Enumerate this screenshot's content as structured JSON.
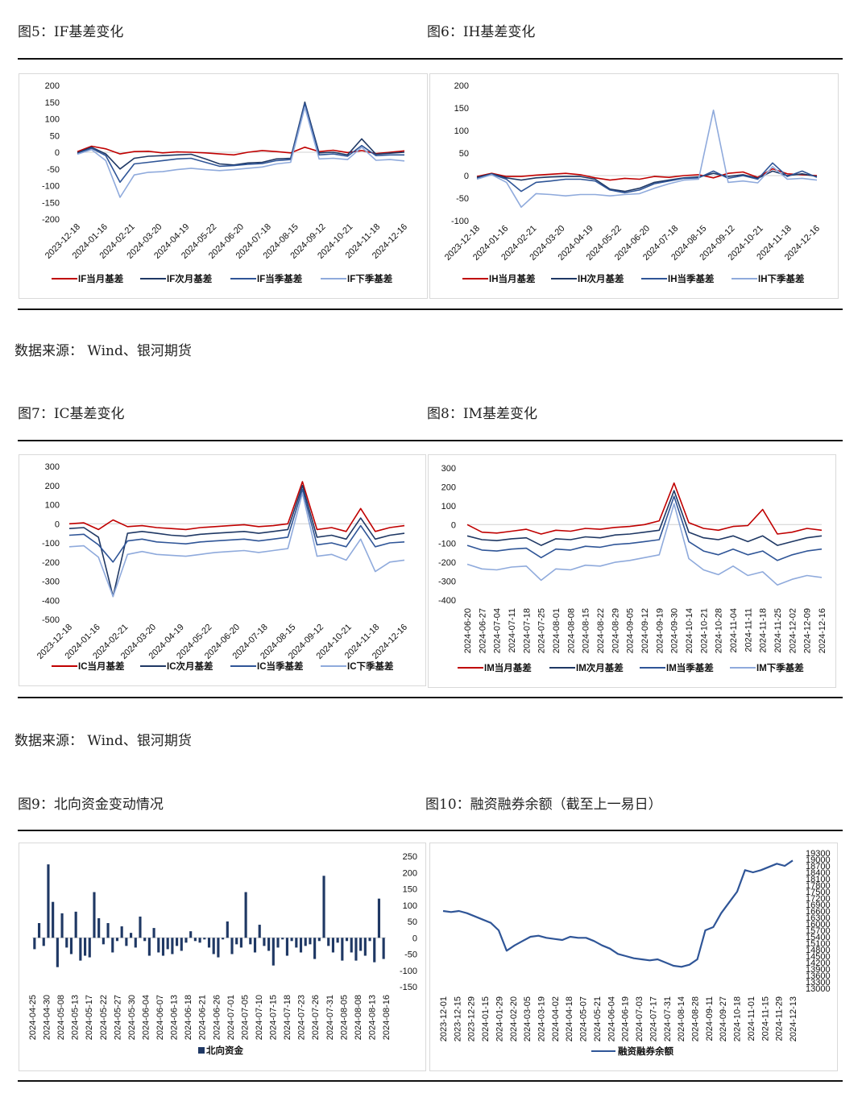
{
  "titles": {
    "fig5": "图5：IF基差变化",
    "fig6": "图6：IH基差变化",
    "fig7": "图7：IC基差变化",
    "fig8": "图8：IM基差变化",
    "fig9": "图9：北向资金变动情况",
    "fig10": "图10：融资融券余额（截至上一易日）"
  },
  "source_note": "数据来源：  Wind、银河期货",
  "colors": {
    "red": "#c00000",
    "navy": "#1f3864",
    "mid": "#2f5597",
    "light": "#8faadc",
    "bar": "#1f3864",
    "rule": "#111111"
  },
  "chart_data": [
    {
      "id": "fig5",
      "type": "line",
      "title": "IF基差变化",
      "yticks": [
        "200",
        "150",
        "100",
        "50",
        "0",
        "-50",
        "-100",
        "-150",
        "-200"
      ],
      "xticks": [
        "2023-12-18",
        "2024-01-16",
        "2024-02-21",
        "2024-03-20",
        "2024-04-19",
        "2024-05-22",
        "2024-06-20",
        "2024-07-18",
        "2024-08-15",
        "2024-09-12",
        "2024-10-21",
        "2024-11-18",
        "2024-12-16"
      ],
      "ylim": [
        -200,
        200
      ],
      "legend": [
        "IF当月基差",
        "IF次月基差",
        "IF当季基差",
        "IF下季基差"
      ],
      "series": [
        {
          "name": "IF当月基差",
          "values": [
            2,
            18,
            10,
            -5,
            2,
            3,
            -2,
            1,
            0,
            -2,
            -5,
            -8,
            0,
            5,
            2,
            -2,
            15,
            2,
            6,
            -1,
            5,
            -4,
            0,
            4
          ]
        },
        {
          "name": "IF次月基差",
          "values": [
            -2,
            15,
            -5,
            -50,
            -18,
            -12,
            -10,
            -8,
            -6,
            -20,
            -35,
            -38,
            -32,
            -30,
            -20,
            -18,
            150,
            -2,
            0,
            -8,
            40,
            -6,
            -3,
            0
          ]
        },
        {
          "name": "IF当季基差",
          "values": [
            -4,
            12,
            -10,
            -90,
            -35,
            -30,
            -25,
            -20,
            -18,
            -30,
            -42,
            -40,
            -36,
            -34,
            -25,
            -22,
            145,
            -8,
            -5,
            -12,
            20,
            -10,
            -8,
            -8
          ]
        },
        {
          "name": "IF下季基差",
          "values": [
            -6,
            8,
            -25,
            -135,
            -68,
            -60,
            -58,
            -52,
            -48,
            -52,
            -55,
            -52,
            -48,
            -44,
            -35,
            -30,
            135,
            -20,
            -18,
            -22,
            15,
            -24,
            -22,
            -26
          ]
        }
      ]
    },
    {
      "id": "fig6",
      "type": "line",
      "title": "IH基差变化",
      "yticks": [
        "200",
        "150",
        "100",
        "50",
        "0",
        "-50",
        "-100"
      ],
      "xticks": [
        "2023-12-18",
        "2024-01-16",
        "2024-02-21",
        "2024-03-20",
        "2024-04-19",
        "2024-05-22",
        "2024-06-20",
        "2024-07-18",
        "2024-08-15",
        "2024-09-12",
        "2024-10-21",
        "2024-11-18",
        "2024-12-16"
      ],
      "ylim": [
        -100,
        200
      ],
      "legend": [
        "IH当月基差",
        "IH次月基差",
        "IH当季基差",
        "IH下季基差"
      ],
      "series": [
        {
          "name": "IH当月基差",
          "values": [
            -2,
            5,
            -2,
            -2,
            1,
            3,
            5,
            2,
            -5,
            -10,
            -6,
            -8,
            -2,
            -4,
            0,
            2,
            -5,
            5,
            8,
            -4,
            15,
            4,
            2,
            0
          ]
        },
        {
          "name": "IH次月基差",
          "values": [
            -4,
            4,
            -5,
            -10,
            -5,
            -3,
            -2,
            -2,
            -8,
            -30,
            -35,
            -28,
            -15,
            -10,
            -5,
            -3,
            5,
            -2,
            2,
            -6,
            10,
            0,
            4,
            -2
          ]
        },
        {
          "name": "IH当季基差",
          "values": [
            -6,
            3,
            -8,
            -35,
            -15,
            -12,
            -8,
            -8,
            -12,
            -32,
            -38,
            -32,
            -18,
            -12,
            -6,
            -5,
            10,
            -6,
            0,
            -8,
            28,
            -2,
            10,
            -4
          ]
        },
        {
          "name": "IH下季基差",
          "values": [
            -8,
            2,
            -15,
            -70,
            -40,
            -42,
            -45,
            -42,
            -42,
            -45,
            -42,
            -40,
            -28,
            -18,
            -10,
            -8,
            145,
            -15,
            -12,
            -16,
            20,
            -8,
            -6,
            -10
          ]
        }
      ]
    },
    {
      "id": "fig7",
      "type": "line",
      "title": "IC基差变化",
      "yticks": [
        "300",
        "200",
        "100",
        "0",
        "-100",
        "-200",
        "-300",
        "-400",
        "-500"
      ],
      "xticks": [
        "2023-12-18",
        "2024-01-16",
        "2024-02-21",
        "2024-03-20",
        "2024-04-19",
        "2024-05-22",
        "2024-06-20",
        "2024-07-18",
        "2024-08-15",
        "2024-09-12",
        "2024-10-21",
        "2024-11-18",
        "2024-12-16"
      ],
      "ylim": [
        -500,
        300
      ],
      "legend": [
        "IC当月基差",
        "IC次月基差",
        "IC当季基差",
        "IC下季基差"
      ],
      "series": [
        {
          "name": "IC当月基差",
          "values": [
            0,
            5,
            -30,
            20,
            -15,
            -10,
            -20,
            -25,
            -30,
            -20,
            -15,
            -10,
            -5,
            -15,
            -10,
            0,
            220,
            -30,
            -20,
            -40,
            80,
            -40,
            -20,
            -10
          ]
        },
        {
          "name": "IC次月基差",
          "values": [
            -25,
            -20,
            -70,
            -380,
            -50,
            -40,
            -50,
            -60,
            -65,
            -55,
            -50,
            -45,
            -40,
            -50,
            -40,
            -30,
            200,
            -70,
            -60,
            -80,
            30,
            -80,
            -60,
            -50
          ]
        },
        {
          "name": "IC当季基差",
          "values": [
            -60,
            -55,
            -110,
            -200,
            -90,
            -80,
            -95,
            -100,
            -105,
            -95,
            -90,
            -85,
            -80,
            -90,
            -80,
            -70,
            180,
            -110,
            -100,
            -120,
            -10,
            -120,
            -100,
            -95
          ]
        },
        {
          "name": "IC下季基差",
          "values": [
            -120,
            -115,
            -175,
            -380,
            -160,
            -145,
            -160,
            -165,
            -170,
            -160,
            -150,
            -145,
            -140,
            -150,
            -140,
            -130,
            160,
            -170,
            -160,
            -190,
            -80,
            -250,
            -200,
            -190
          ]
        }
      ]
    },
    {
      "id": "fig8",
      "type": "line",
      "title": "IM基差变化",
      "yticks": [
        "300",
        "200",
        "100",
        "0",
        "-100",
        "-200",
        "-300",
        "-400"
      ],
      "xticks": [
        "2024-06-20",
        "2024-06-27",
        "2024-07-04",
        "2024-07-11",
        "2024-07-18",
        "2024-07-25",
        "2024-08-01",
        "2024-08-08",
        "2024-08-15",
        "2024-08-22",
        "2024-08-29",
        "2024-09-05",
        "2024-09-12",
        "2024-09-19",
        "2024-09-30",
        "2024-10-14",
        "2024-10-21",
        "2024-10-28",
        "2024-11-04",
        "2024-11-11",
        "2024-11-18",
        "2024-11-25",
        "2024-12-02",
        "2024-12-09",
        "2024-12-16"
      ],
      "ylim": [
        -400,
        300
      ],
      "legend": [
        "IM当月基差",
        "IM次月基差",
        "IM当季基差",
        "IM下季基差"
      ],
      "series": [
        {
          "name": "IM当月基差",
          "values": [
            0,
            -40,
            -45,
            -35,
            -25,
            -50,
            -30,
            -35,
            -20,
            -25,
            -15,
            -10,
            0,
            20,
            220,
            10,
            -20,
            -30,
            -10,
            -5,
            80,
            -50,
            -40,
            -20,
            -30
          ]
        },
        {
          "name": "IM次月基差",
          "values": [
            -60,
            -80,
            -85,
            -75,
            -70,
            -110,
            -75,
            -80,
            -65,
            -70,
            -55,
            -50,
            -40,
            -30,
            180,
            -40,
            -70,
            -80,
            -60,
            -90,
            -60,
            -110,
            -90,
            -70,
            -60
          ]
        },
        {
          "name": "IM当季基差",
          "values": [
            -110,
            -135,
            -140,
            -130,
            -125,
            -175,
            -130,
            -135,
            -115,
            -120,
            -105,
            -100,
            -90,
            -80,
            150,
            -90,
            -140,
            -160,
            -130,
            -160,
            -140,
            -190,
            -160,
            -140,
            -130
          ]
        },
        {
          "name": "IM下季基差",
          "values": [
            -210,
            -235,
            -240,
            -225,
            -220,
            -295,
            -235,
            -240,
            -215,
            -220,
            -200,
            -190,
            -175,
            -160,
            110,
            -180,
            -240,
            -265,
            -220,
            -270,
            -250,
            -320,
            -290,
            -270,
            -280
          ]
        }
      ]
    },
    {
      "id": "fig9",
      "type": "bar",
      "title": "北向资金变动情况",
      "yticks": [
        "250",
        "200",
        "150",
        "100",
        "50",
        "0",
        "-50",
        "-100",
        "-150"
      ],
      "xticks": [
        "2024-04-25",
        "2024-04-30",
        "2024-05-08",
        "2024-05-13",
        "2024-05-17",
        "2024-05-22",
        "2024-05-27",
        "2024-05-30",
        "2024-06-04",
        "2024-06-07",
        "2024-06-13",
        "2024-06-18",
        "2024-06-21",
        "2024-06-26",
        "2024-07-01",
        "2024-07-05",
        "2024-07-10",
        "2024-07-15",
        "2024-07-18",
        "2024-07-23",
        "2024-07-26",
        "2024-07-31",
        "2024-08-05",
        "2024-08-08",
        "2024-08-13",
        "2024-08-16"
      ],
      "ylim": [
        -150,
        250
      ],
      "legend": [
        "北向资金"
      ],
      "values": [
        -35,
        45,
        -25,
        225,
        110,
        -90,
        75,
        -30,
        -50,
        80,
        -70,
        -55,
        -60,
        140,
        60,
        -20,
        45,
        -45,
        -10,
        35,
        -25,
        15,
        -30,
        65,
        -10,
        -55,
        30,
        -45,
        -55,
        -35,
        -50,
        -25,
        -40,
        -15,
        20,
        -10,
        -15,
        -5,
        -30,
        -50,
        -60,
        -5,
        50,
        -50,
        -20,
        -30,
        140,
        -20,
        -45,
        40,
        -25,
        -40,
        -85,
        -30,
        -5,
        -55,
        -10,
        -30,
        -45,
        -25,
        -20,
        -65,
        -10,
        190,
        -25,
        -45,
        -15,
        -70,
        -10,
        -45,
        -70,
        -40,
        -55,
        -10,
        -75,
        120,
        -65
      ]
    },
    {
      "id": "fig10",
      "type": "line",
      "title": "融资融券余额",
      "yticks": [
        "19300",
        "19000",
        "18700",
        "18400",
        "18100",
        "17800",
        "17500",
        "17200",
        "16900",
        "16600",
        "16300",
        "16000",
        "15700",
        "15400",
        "15100",
        "14800",
        "14500",
        "14200",
        "13900",
        "13600",
        "13300",
        "13000"
      ],
      "xticks": [
        "2023-12-01",
        "2023-12-15",
        "2023-12-29",
        "2024-01-15",
        "2024-01-29",
        "2024-02-20",
        "2024-03-05",
        "2024-03-19",
        "2024-04-02",
        "2024-04-18",
        "2024-05-07",
        "2024-05-21",
        "2024-06-04",
        "2024-06-19",
        "2024-07-03",
        "2024-07-17",
        "2024-07-31",
        "2024-08-14",
        "2024-08-28",
        "2024-09-11",
        "2024-09-27",
        "2024-10-18",
        "2024-11-01",
        "2024-11-15",
        "2024-11-29",
        "2024-12-13"
      ],
      "ylim": [
        13000,
        19300
      ],
      "legend": [
        "融资融券余额"
      ],
      "series": [
        {
          "name": "融资融券余额",
          "values": [
            16600,
            16550,
            16600,
            16500,
            16350,
            16200,
            16050,
            15700,
            14750,
            15000,
            15200,
            15400,
            15450,
            15350,
            15300,
            15250,
            15400,
            15350,
            15350,
            15200,
            15000,
            14850,
            14600,
            14500,
            14400,
            14350,
            14300,
            14350,
            14200,
            14050,
            14000,
            14100,
            14350,
            15700,
            15850,
            16500,
            17000,
            17500,
            18500,
            18400,
            18500,
            18650,
            18800,
            18700,
            18950
          ]
        }
      ]
    }
  ]
}
